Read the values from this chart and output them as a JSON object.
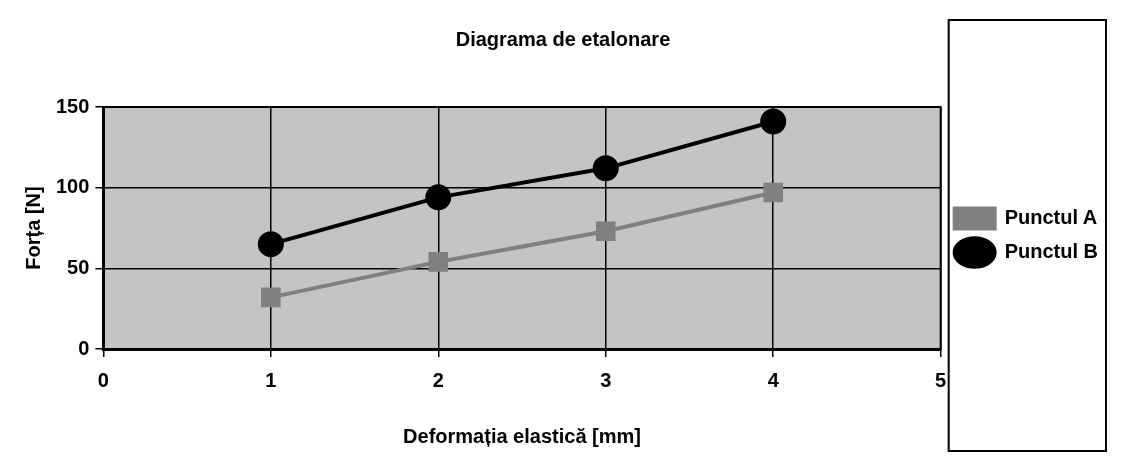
{
  "chart_data": {
    "type": "line",
    "title": "Diagrama de etalonare",
    "xlabel": "Deformația elastică [mm]",
    "ylabel": "Forța [N]",
    "x": [
      1,
      2,
      3,
      4
    ],
    "series": [
      {
        "name": "Punctul A",
        "color": "#808080",
        "values": [
          32,
          54,
          73,
          97
        ],
        "marker": "square"
      },
      {
        "name": "Punctul B",
        "color": "#000000",
        "values": [
          65,
          94,
          112,
          141
        ],
        "marker": "circle"
      }
    ],
    "xlim": [
      0,
      5
    ],
    "xticks": [
      0,
      1,
      2,
      3,
      4,
      5
    ],
    "ylim": [
      0,
      150
    ],
    "yticks": [
      0,
      50,
      100,
      150
    ],
    "grid": true,
    "legend": "right",
    "line_style": "solid"
  }
}
